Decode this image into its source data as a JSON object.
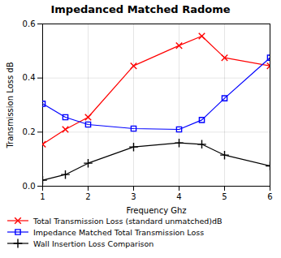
{
  "chart_data": {
    "type": "line",
    "title": "Impedanced Matched Radome",
    "xlabel": "Frequency Ghz",
    "ylabel": "Transmission Loss dB",
    "x": [
      1,
      1.5,
      2,
      3,
      4,
      4.5,
      5,
      6
    ],
    "series": [
      {
        "name": "Total Transmission Loss (standard unmatched)dB",
        "color": "red",
        "marker": "x",
        "values": [
          0.155,
          0.21,
          0.255,
          0.445,
          0.52,
          0.555,
          0.475,
          0.445
        ]
      },
      {
        "name": "Impedance Matched Total Transmission Loss",
        "color": "blue",
        "marker": "square",
        "values": [
          0.305,
          0.255,
          0.228,
          0.213,
          0.21,
          0.245,
          0.325,
          0.475
        ]
      },
      {
        "name": "Wall Insertion Loss Comparison",
        "color": "black",
        "marker": "plus",
        "values": [
          0.022,
          0.043,
          0.085,
          0.145,
          0.16,
          0.155,
          0.115,
          0.075
        ]
      }
    ],
    "xlim": [
      1,
      6
    ],
    "xticks": [
      1,
      2,
      3,
      4,
      5,
      6
    ],
    "ylim": [
      0,
      0.6
    ],
    "yticks": [
      {
        "value": 0,
        "label": "0.0"
      },
      0.2,
      0.4,
      0.6
    ],
    "grid": true,
    "legend": "bottom"
  }
}
